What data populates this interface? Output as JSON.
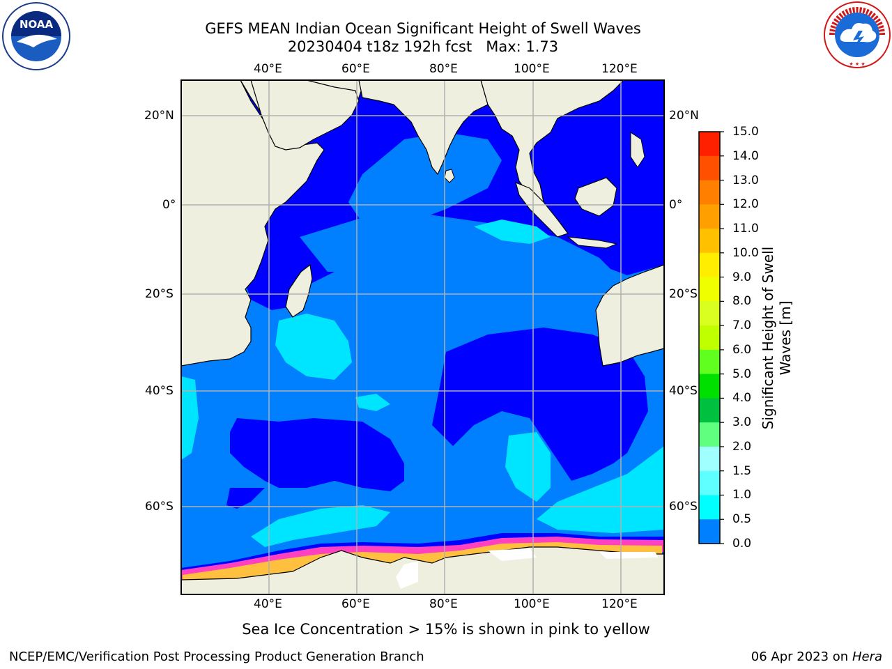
{
  "title": {
    "line1": "GEFS MEAN Indian Ocean Significant Height of Swell Waves",
    "line2": "20230404 t18z 192h fcst   Max: 1.73"
  },
  "map": {
    "lon_labels": [
      "40°E",
      "60°E",
      "80°E",
      "100°E",
      "120°E"
    ],
    "lat_labels": [
      "20°N",
      "0°",
      "20°S",
      "40°S",
      "60°S"
    ],
    "land_color": "#efefdf",
    "ocean_colors": {
      "0.0-0.5": "#0000ff",
      "0.5-1.0": "#0080ff",
      "1.0-1.5": "#00e5ff",
      "1.5-2.0": "#66ffff",
      "sea_ice_low": "#ff40c0",
      "sea_ice_high": "#ffc040"
    }
  },
  "colorbar": {
    "title": "Significant Height of Swell Waves [m]",
    "title_line1": "Significant Height of Swell",
    "title_line2": "Waves [m]",
    "ticks": [
      "15.0",
      "14.0",
      "13.0",
      "12.0",
      "11.0",
      "10.0",
      "9.0",
      "8.0",
      "7.0",
      "6.0",
      "5.0",
      "4.0",
      "3.0",
      "2.0",
      "1.5",
      "1.0",
      "0.5",
      "0.0"
    ],
    "colors": [
      "#ff0000",
      "#ff2000",
      "#ff5000",
      "#ff8000",
      "#ffa000",
      "#ffc000",
      "#ffee00",
      "#f0ff00",
      "#d8ff20",
      "#c0ff00",
      "#60ff20",
      "#00e000",
      "#00c040",
      "#60ff80",
      "#a0ffff",
      "#60ffff",
      "#00ffff",
      "#0080ff",
      "#0000ff"
    ]
  },
  "notes": {
    "sea_ice": "Sea Ice Concentration > 15% is shown in pink to yellow"
  },
  "footer": {
    "left": "NCEP/EMC/Verification Post Processing Product Generation Branch",
    "date": "06 Apr 2023 on ",
    "machine": "Hera"
  },
  "logos": {
    "noaa": "NOAA",
    "nws": "NATIONAL WEATHER SERVICE"
  }
}
